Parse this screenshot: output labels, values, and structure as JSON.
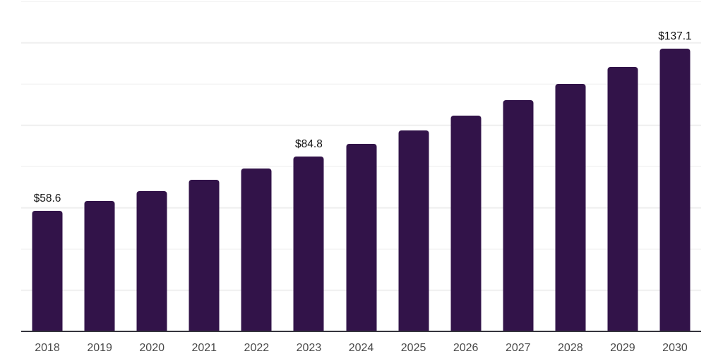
{
  "chart_data": {
    "type": "bar",
    "title": "",
    "xlabel": "",
    "ylabel": "",
    "categories": [
      "2018",
      "2019",
      "2020",
      "2021",
      "2022",
      "2023",
      "2024",
      "2025",
      "2026",
      "2027",
      "2028",
      "2029",
      "2030"
    ],
    "values": [
      58.6,
      63.3,
      68.2,
      73.4,
      78.9,
      84.8,
      91.0,
      97.5,
      104.6,
      112.0,
      120.0,
      128.3,
      137.1
    ],
    "data_labels": {
      "2018": "$58.6",
      "2023": "$84.8",
      "2030": "$137.1"
    },
    "ylim": [
      0,
      160
    ],
    "grid_step": 20,
    "grid": "horizontal",
    "legend": "none",
    "colors": {
      "bar": "#321349",
      "axis_line": "#35353d",
      "gridline": "#efefef",
      "value_label": "#141414",
      "tick_label": "#4a4a4a",
      "background": "#ffffff"
    }
  }
}
